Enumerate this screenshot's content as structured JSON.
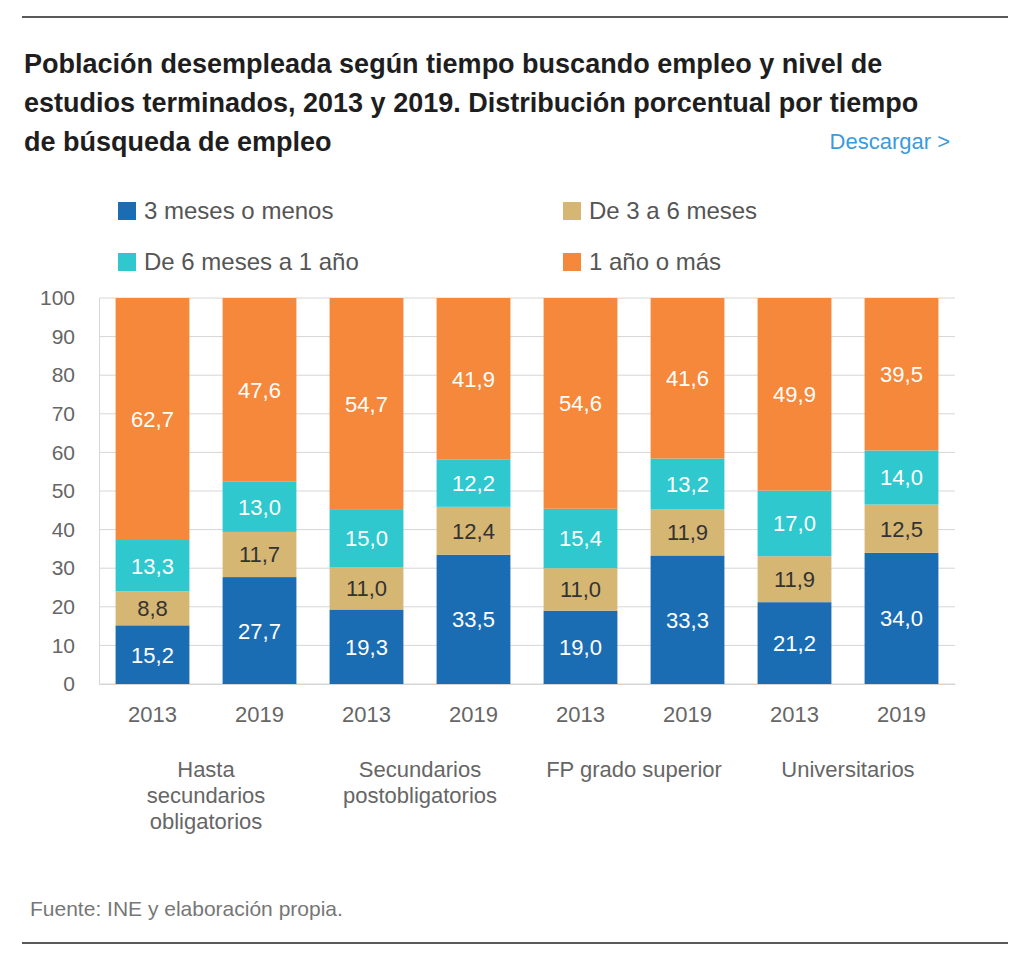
{
  "chart_data": {
    "type": "bar",
    "title": "Población desempleada según tiempo buscando empleo y nivel de estudios terminados, 2013 y 2019. Distribución porcentual por tiempo de búsqueda de empleo",
    "link_text": "Descargar >",
    "source": "Fuente: INE y elaboración propia.",
    "categories": [
      "2013",
      "2019",
      "2013",
      "2019",
      "2013",
      "2019",
      "2013",
      "2019"
    ],
    "group_labels": [
      "Hasta secundarios obligatorios",
      "Secundarios postobligatorios",
      "FP grado superior",
      "Universitarios"
    ],
    "series": [
      {
        "name": "3 meses o menos",
        "color": "#1b6db3",
        "values": [
          15.2,
          27.7,
          19.3,
          33.5,
          19.0,
          33.3,
          21.2,
          34.0
        ],
        "value_labels": [
          "15,2",
          "27,7",
          "19,3",
          "33,5",
          "19,0",
          "33,3",
          "21,2",
          "34,0"
        ]
      },
      {
        "name": "De 3 a 6 meses",
        "color": "#d5b673",
        "values": [
          8.8,
          11.7,
          11.0,
          12.4,
          11.0,
          11.9,
          11.9,
          12.5
        ],
        "value_labels": [
          "8,8",
          "11,7",
          "11,0",
          "12,4",
          "11,0",
          "11,9",
          "11,9",
          "12,5"
        ]
      },
      {
        "name": "De 6 meses a 1 año",
        "color": "#2ec8ce",
        "values": [
          13.3,
          13.0,
          15.0,
          12.2,
          15.4,
          13.2,
          17.0,
          14.0
        ],
        "value_labels": [
          "13,3",
          "13,0",
          "15,0",
          "12,2",
          "15,4",
          "13,2",
          "17,0",
          "14,0"
        ]
      },
      {
        "name": "1 año o más",
        "color": "#f5883b",
        "values": [
          62.7,
          47.6,
          54.7,
          41.9,
          54.6,
          41.6,
          49.9,
          39.5
        ],
        "value_labels": [
          "62,7",
          "47,6",
          "54,7",
          "41,9",
          "54,6",
          "41,6",
          "49,9",
          "39,5"
        ]
      }
    ],
    "ylim": [
      0,
      100
    ],
    "yticks": [
      0,
      10,
      20,
      30,
      40,
      50,
      60,
      70,
      80,
      90,
      100
    ],
    "stacked": true,
    "grid": true,
    "legend": "top",
    "data_labels": true
  }
}
